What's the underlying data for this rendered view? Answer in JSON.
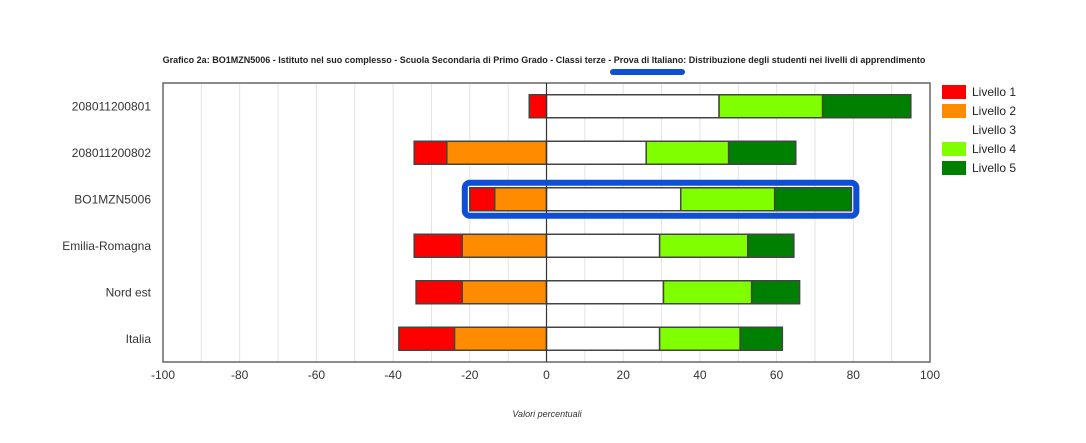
{
  "chart_data": {
    "type": "bar",
    "orientation": "horizontal",
    "stacked": "diverging",
    "title": "Grafico 2a: BO1MZN5006 - Istituto nel suo complesso - Scuola Secondaria di Primo Grado - Classi terze - Prova di Italiano: Distribuzione degli studenti nei livelli di apprendimento",
    "xlabel": "Valori percentuali",
    "ylabel": "",
    "xlim": [
      -100,
      100
    ],
    "xticks": [
      "-100",
      "-80",
      "-60",
      "-40",
      "-20",
      "0",
      "20",
      "40",
      "60",
      "80",
      "100"
    ],
    "grid": true,
    "legend_position": "right",
    "highlighted_category": "BO1MZN5006",
    "categories": [
      "208011200801",
      "208011200802",
      "BO1MZN5006",
      "Emilia-Romagna",
      "Nord est",
      "Italia"
    ],
    "series": [
      {
        "name": "Livello 1",
        "color": "#ff0000",
        "side": "negative",
        "values": [
          4.5,
          8.5,
          6.5,
          12.5,
          12,
          14.5
        ]
      },
      {
        "name": "Livello 2",
        "color": "#ff8c00",
        "side": "negative",
        "values": [
          0,
          26,
          13.5,
          22,
          22,
          24
        ]
      },
      {
        "name": "Livello 3",
        "color": "#ffffff",
        "side": "positive",
        "values": [
          45,
          26,
          35,
          29.5,
          30.5,
          29.5
        ]
      },
      {
        "name": "Livello 4",
        "color": "#80ff00",
        "side": "positive",
        "values": [
          27,
          21.5,
          24.5,
          23,
          23,
          21
        ]
      },
      {
        "name": "Livello 5",
        "color": "#008000",
        "side": "positive",
        "values": [
          23,
          17.5,
          20,
          12,
          12.5,
          11
        ]
      }
    ]
  }
}
